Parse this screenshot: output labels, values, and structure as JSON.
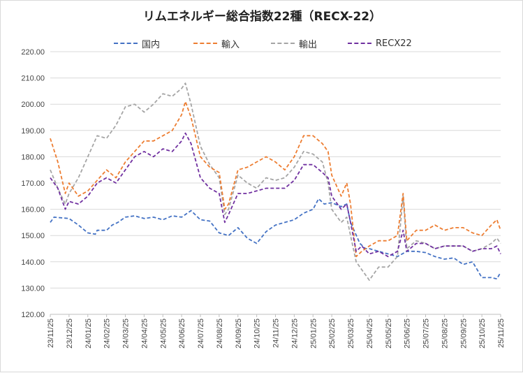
{
  "chart_data": {
    "type": "line",
    "title": "リムエネルギー総合指数22種（RECX-22）",
    "xlabel": "",
    "ylabel": "",
    "ylim": [
      120,
      220
    ],
    "yticks": [
      "120.00",
      "130.00",
      "140.00",
      "150.00",
      "160.00",
      "170.00",
      "180.00",
      "190.00",
      "200.00",
      "210.00",
      "220.00"
    ],
    "categories": [
      "23/11/25",
      "23/12/25",
      "24/01/25",
      "24/02/25",
      "24/03/25",
      "24/04/25",
      "24/05/25",
      "24/06/25",
      "24/07/25",
      "24/08/25",
      "24/09/25",
      "24/10/25",
      "24/11/25",
      "24/12/25",
      "25/01/25",
      "25/02/25",
      "25/03/25",
      "25/04/25",
      "25/05/25",
      "25/06/25",
      "25/07/25",
      "25/08/25",
      "25/09/25",
      "25/10/25",
      "25/11/25"
    ],
    "grid": true,
    "legend_position": "top",
    "series": [
      {
        "name": "国内",
        "color": "#4472c4",
        "values": [
          [
            0,
            155
          ],
          [
            0.2,
            157
          ],
          [
            1,
            156.5
          ],
          [
            1.5,
            154
          ],
          [
            2,
            151
          ],
          [
            2.4,
            150.5
          ],
          [
            2.5,
            152
          ],
          [
            3,
            152
          ],
          [
            3.3,
            154
          ],
          [
            3.6,
            155
          ],
          [
            4,
            157
          ],
          [
            4.5,
            157.5
          ],
          [
            5,
            156.5
          ],
          [
            5.5,
            157
          ],
          [
            6,
            156
          ],
          [
            6.5,
            157.5
          ],
          [
            7,
            157
          ],
          [
            7.5,
            159.5
          ],
          [
            8,
            156
          ],
          [
            8.5,
            155.5
          ],
          [
            9,
            151
          ],
          [
            9.5,
            150
          ],
          [
            10,
            153
          ],
          [
            10.5,
            149
          ],
          [
            11,
            147
          ],
          [
            11.5,
            151.5
          ],
          [
            12,
            154
          ],
          [
            12.5,
            155
          ],
          [
            13,
            156
          ],
          [
            13.5,
            158.5
          ],
          [
            14,
            160
          ],
          [
            14.3,
            164
          ],
          [
            14.6,
            162
          ],
          [
            15,
            162.5
          ],
          [
            15.5,
            161
          ],
          [
            15.8,
            162
          ],
          [
            16,
            155
          ],
          [
            16.5,
            147
          ],
          [
            16.8,
            145
          ],
          [
            17,
            145
          ],
          [
            17.5,
            144
          ],
          [
            18,
            143
          ],
          [
            18.5,
            142
          ],
          [
            19,
            144
          ],
          [
            19.5,
            144
          ],
          [
            20,
            143.5
          ],
          [
            20.5,
            142
          ],
          [
            21,
            141
          ],
          [
            21.5,
            141.5
          ],
          [
            22,
            139
          ],
          [
            22.5,
            140
          ],
          [
            23,
            134
          ],
          [
            23.5,
            134
          ],
          [
            23.8,
            133.5
          ],
          [
            24,
            136
          ]
        ]
      },
      {
        "name": "輸入",
        "color": "#ed7d31",
        "values": [
          [
            0,
            187
          ],
          [
            0.4,
            178
          ],
          [
            0.8,
            166
          ],
          [
            1,
            170
          ],
          [
            1.5,
            165
          ],
          [
            2,
            167
          ],
          [
            2.5,
            171
          ],
          [
            3,
            175
          ],
          [
            3.5,
            172
          ],
          [
            4,
            178
          ],
          [
            4.5,
            182
          ],
          [
            5,
            186
          ],
          [
            5.5,
            186
          ],
          [
            6,
            188
          ],
          [
            6.5,
            190
          ],
          [
            7,
            196
          ],
          [
            7.2,
            201
          ],
          [
            7.5,
            195
          ],
          [
            8,
            180
          ],
          [
            8.5,
            176
          ],
          [
            9,
            174
          ],
          [
            9.3,
            160
          ],
          [
            9.5,
            162
          ],
          [
            10,
            175
          ],
          [
            10.5,
            176
          ],
          [
            11,
            178
          ],
          [
            11.5,
            180
          ],
          [
            12,
            178
          ],
          [
            12.5,
            175
          ],
          [
            13,
            180
          ],
          [
            13.5,
            188
          ],
          [
            14,
            188
          ],
          [
            14.5,
            185
          ],
          [
            14.8,
            182
          ],
          [
            15,
            173
          ],
          [
            15.5,
            165
          ],
          [
            15.8,
            170
          ],
          [
            16,
            162
          ],
          [
            16.3,
            142
          ],
          [
            16.6,
            144
          ],
          [
            17,
            146
          ],
          [
            17.5,
            148
          ],
          [
            18,
            148
          ],
          [
            18.5,
            150
          ],
          [
            18.8,
            166
          ],
          [
            19,
            148
          ],
          [
            19.5,
            152
          ],
          [
            20,
            152
          ],
          [
            20.5,
            154
          ],
          [
            21,
            152
          ],
          [
            21.5,
            153
          ],
          [
            22,
            153
          ],
          [
            22.5,
            151
          ],
          [
            23,
            150
          ],
          [
            23.5,
            154
          ],
          [
            23.8,
            156
          ],
          [
            24,
            152
          ]
        ]
      },
      {
        "name": "輸出",
        "color": "#a5a5a5",
        "values": [
          [
            0,
            175
          ],
          [
            0.4,
            168
          ],
          [
            0.8,
            162
          ],
          [
            1,
            166
          ],
          [
            1.5,
            172
          ],
          [
            2,
            180
          ],
          [
            2.5,
            188
          ],
          [
            3,
            187
          ],
          [
            3.5,
            192
          ],
          [
            4,
            199
          ],
          [
            4.5,
            200
          ],
          [
            5,
            197
          ],
          [
            5.5,
            200
          ],
          [
            6,
            204
          ],
          [
            6.5,
            203
          ],
          [
            7,
            206
          ],
          [
            7.2,
            208
          ],
          [
            7.5,
            200
          ],
          [
            8,
            184
          ],
          [
            8.5,
            177
          ],
          [
            9,
            172
          ],
          [
            9.3,
            158
          ],
          [
            9.5,
            160
          ],
          [
            10,
            173
          ],
          [
            10.5,
            170
          ],
          [
            11,
            168
          ],
          [
            11.5,
            172
          ],
          [
            12,
            171
          ],
          [
            12.5,
            172
          ],
          [
            13,
            176
          ],
          [
            13.5,
            182
          ],
          [
            14,
            181
          ],
          [
            14.5,
            178
          ],
          [
            14.8,
            170
          ],
          [
            15,
            160
          ],
          [
            15.5,
            155
          ],
          [
            15.8,
            157
          ],
          [
            16,
            150
          ],
          [
            16.3,
            140
          ],
          [
            16.6,
            137
          ],
          [
            17,
            133
          ],
          [
            17.5,
            138
          ],
          [
            18,
            138
          ],
          [
            18.5,
            142
          ],
          [
            18.8,
            165
          ],
          [
            19,
            145
          ],
          [
            19.5,
            148
          ],
          [
            20,
            147
          ],
          [
            20.5,
            145
          ],
          [
            21,
            146
          ],
          [
            21.5,
            146
          ],
          [
            22,
            146
          ],
          [
            22.5,
            144
          ],
          [
            23,
            145
          ],
          [
            23.5,
            147
          ],
          [
            23.8,
            149
          ],
          [
            24,
            147
          ]
        ]
      },
      {
        "name": "RECX22",
        "color": "#7030a0",
        "values": [
          [
            0,
            172
          ],
          [
            0.4,
            168
          ],
          [
            0.8,
            160
          ],
          [
            1,
            163
          ],
          [
            1.5,
            162
          ],
          [
            2,
            165
          ],
          [
            2.5,
            170
          ],
          [
            3,
            172
          ],
          [
            3.5,
            170
          ],
          [
            4,
            175
          ],
          [
            4.5,
            180
          ],
          [
            5,
            182
          ],
          [
            5.5,
            180
          ],
          [
            6,
            183
          ],
          [
            6.5,
            182
          ],
          [
            7,
            186
          ],
          [
            7.2,
            189
          ],
          [
            7.5,
            185
          ],
          [
            8,
            172
          ],
          [
            8.5,
            168
          ],
          [
            9,
            166
          ],
          [
            9.3,
            155
          ],
          [
            9.5,
            158
          ],
          [
            10,
            166
          ],
          [
            10.5,
            166
          ],
          [
            11,
            167
          ],
          [
            11.5,
            168
          ],
          [
            12,
            168
          ],
          [
            12.5,
            168
          ],
          [
            13,
            171
          ],
          [
            13.5,
            177
          ],
          [
            14,
            177
          ],
          [
            14.5,
            174
          ],
          [
            14.8,
            172
          ],
          [
            15,
            165
          ],
          [
            15.5,
            160
          ],
          [
            15.8,
            162
          ],
          [
            16,
            155
          ],
          [
            16.3,
            144
          ],
          [
            16.6,
            146
          ],
          [
            17,
            143
          ],
          [
            17.5,
            144
          ],
          [
            18,
            142
          ],
          [
            18.5,
            144
          ],
          [
            18.8,
            152
          ],
          [
            19,
            144
          ],
          [
            19.5,
            147
          ],
          [
            20,
            147
          ],
          [
            20.5,
            145
          ],
          [
            21,
            146
          ],
          [
            21.5,
            146
          ],
          [
            22,
            146
          ],
          [
            22.5,
            144
          ],
          [
            23,
            145
          ],
          [
            23.5,
            145
          ],
          [
            23.8,
            146
          ],
          [
            24,
            143
          ]
        ]
      }
    ]
  }
}
